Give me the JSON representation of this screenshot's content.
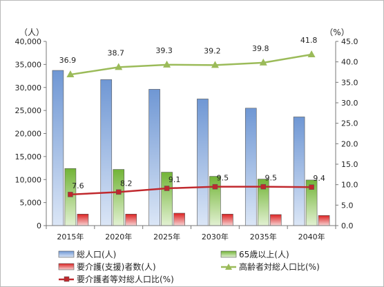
{
  "chart_data": {
    "type": "bar",
    "categories": [
      "2015年",
      "2020年",
      "2025年",
      "2030年",
      "2035年",
      "2040年"
    ],
    "left_axis": {
      "unit": "（人）",
      "range": [
        0,
        40000
      ],
      "ticks": [
        "0",
        "5,000",
        "10,000",
        "15,000",
        "20,000",
        "25,000",
        "30,000",
        "35,000",
        "40,000"
      ]
    },
    "right_axis": {
      "unit": "（%）",
      "range": [
        0,
        45
      ],
      "ticks": [
        "0.0",
        "5.0",
        "10.0",
        "15.0",
        "20.0",
        "25.0",
        "30.0",
        "35.0",
        "40.0",
        "45.0"
      ]
    },
    "series": [
      {
        "name": "総人口(人)",
        "kind": "bar",
        "axis": "left",
        "color": "#7ba1d9",
        "values": [
          33700,
          31700,
          29600,
          27500,
          25500,
          23600
        ]
      },
      {
        "name": "65歳以上(人)",
        "kind": "bar",
        "axis": "left",
        "color": "#7fbf3f",
        "values": [
          12400,
          12200,
          11600,
          10700,
          10100,
          9900
        ]
      },
      {
        "name": "要介護(支援)者数(人)",
        "kind": "bar",
        "axis": "left",
        "color": "#e03030",
        "values": [
          2500,
          2500,
          2700,
          2500,
          2400,
          2200
        ]
      },
      {
        "name": "高齢者対総人口比(%)",
        "kind": "line",
        "axis": "right",
        "color": "#9bbb59",
        "marker": "triangle",
        "values": [
          36.9,
          38.7,
          39.3,
          39.2,
          39.8,
          41.8
        ],
        "labels": [
          "36.9",
          "38.7",
          "39.3",
          "39.2",
          "39.8",
          "41.8"
        ]
      },
      {
        "name": "要介護者等対総人口比(%)",
        "kind": "line",
        "axis": "right",
        "color": "#c0282d",
        "marker": "square",
        "values": [
          7.6,
          8.2,
          9.1,
          9.5,
          9.5,
          9.4
        ],
        "labels": [
          "7.6",
          "8.2",
          "9.1",
          "9.5",
          "9.5",
          "9.4"
        ]
      }
    ],
    "grid": false,
    "legend_position": "bottom"
  }
}
